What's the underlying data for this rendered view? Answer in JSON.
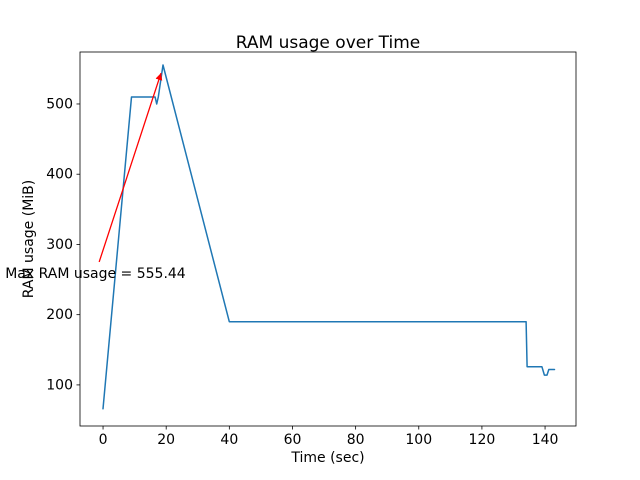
{
  "chart_data": {
    "type": "line",
    "title": "RAM usage over Time",
    "xlabel": "Time (sec)",
    "ylabel": "RAM usage (MiB)",
    "xlim": [
      -7.3,
      149.8
    ],
    "ylim": [
      41.5,
      574
    ],
    "xticks": [
      0,
      20,
      40,
      60,
      80,
      100,
      120,
      140
    ],
    "yticks": [
      100,
      200,
      300,
      400,
      500
    ],
    "grid": false,
    "legend": "none",
    "line_color": "#1f77b4",
    "series": [
      {
        "name": "RAM usage",
        "points": [
          [
            0,
            66
          ],
          [
            9,
            510
          ],
          [
            16.5,
            510
          ],
          [
            17,
            500
          ],
          [
            17.5,
            510
          ],
          [
            19,
            555.44
          ],
          [
            40,
            190
          ],
          [
            134,
            190
          ],
          [
            134.3,
            126
          ],
          [
            139,
            126
          ],
          [
            139.8,
            114
          ],
          [
            140.6,
            114
          ],
          [
            141.2,
            122
          ],
          [
            143,
            122
          ]
        ]
      }
    ],
    "annotation": {
      "text": "Max RAM usage = 555.44",
      "color": "#ff0000",
      "xy": [
        19,
        555.44
      ],
      "text_xy": [
        -31,
        258
      ]
    }
  }
}
